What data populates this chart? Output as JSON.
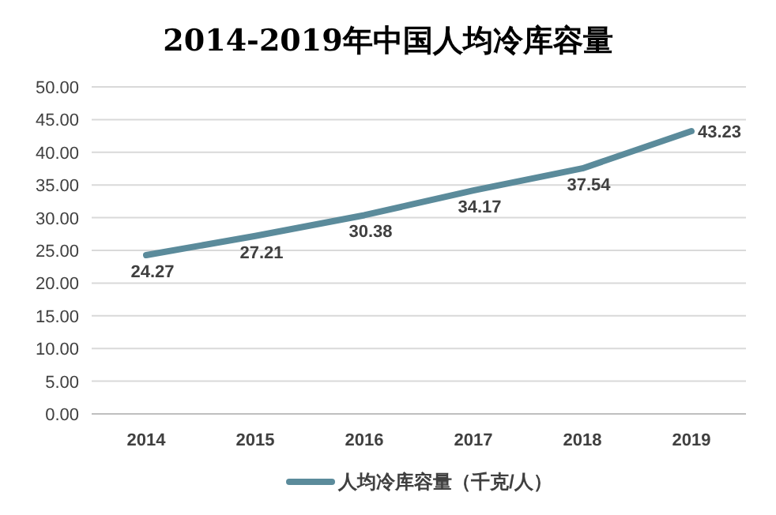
{
  "chart_data": {
    "type": "line",
    "title": "2014-2019年中国人均冷库容量",
    "categories": [
      "2014",
      "2015",
      "2016",
      "2017",
      "2018",
      "2019"
    ],
    "series": [
      {
        "name": "人均冷库容量（千克/人）",
        "color": "#5b8b9b",
        "values": [
          24.27,
          27.21,
          30.38,
          34.17,
          37.54,
          43.23
        ]
      }
    ],
    "ylim": [
      0,
      50
    ],
    "yticks": [
      {
        "value": 0,
        "label": "0.00"
      },
      {
        "value": 5,
        "label": "5.00"
      },
      {
        "value": 10,
        "label": "10.00"
      },
      {
        "value": 15,
        "label": "15.00"
      },
      {
        "value": 20,
        "label": "20.00"
      },
      {
        "value": 25,
        "label": "25.00"
      },
      {
        "value": 30,
        "label": "30.00"
      },
      {
        "value": 35,
        "label": "35.00"
      },
      {
        "value": 40,
        "label": "40.00"
      },
      {
        "value": 45,
        "label": "45.00"
      },
      {
        "value": 50,
        "label": "50.00"
      }
    ],
    "grid": "y",
    "legend": "bottom",
    "data_labels": true,
    "marker": "none",
    "line_style": "solid"
  }
}
